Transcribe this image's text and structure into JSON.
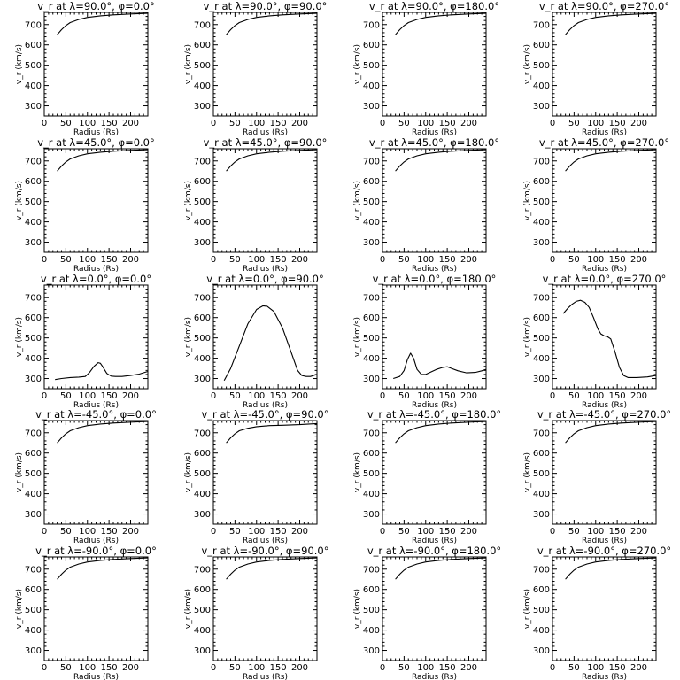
{
  "figure": {
    "background": "#ffffff",
    "line_color": "#000000"
  },
  "chart_data": [
    {
      "type": "line",
      "title": "v_r at λ=90.0°, φ=0.0°",
      "xlabel": "Radius (Rs)",
      "ylabel": "v_r (km/s)",
      "xlim": [
        0,
        240
      ],
      "ylim": [
        250,
        760
      ],
      "xticks": [
        0,
        50,
        100,
        150,
        200
      ],
      "yticks": [
        300,
        400,
        500,
        600,
        700
      ],
      "x": [
        30,
        40,
        50,
        60,
        80,
        100,
        130,
        160,
        200,
        240
      ],
      "y": [
        650,
        675,
        695,
        710,
        725,
        735,
        743,
        748,
        752,
        755
      ]
    },
    {
      "type": "line",
      "title": "v_r at λ=90.0°, φ=90.0°",
      "xlabel": "Radius (Rs)",
      "ylabel": "v_r (km/s)",
      "xlim": [
        0,
        240
      ],
      "ylim": [
        250,
        760
      ],
      "xticks": [
        0,
        50,
        100,
        150,
        200
      ],
      "yticks": [
        300,
        400,
        500,
        600,
        700
      ],
      "x": [
        30,
        40,
        50,
        60,
        80,
        100,
        130,
        160,
        200,
        240
      ],
      "y": [
        650,
        675,
        695,
        710,
        725,
        735,
        743,
        748,
        752,
        755
      ]
    },
    {
      "type": "line",
      "title": "v_r at λ=90.0°, φ=180.0°",
      "xlabel": "Radius (Rs)",
      "ylabel": "v_r (km/s)",
      "xlim": [
        0,
        240
      ],
      "ylim": [
        250,
        760
      ],
      "xticks": [
        0,
        50,
        100,
        150,
        200
      ],
      "yticks": [
        300,
        400,
        500,
        600,
        700
      ],
      "x": [
        30,
        40,
        50,
        60,
        80,
        100,
        130,
        160,
        200,
        240
      ],
      "y": [
        650,
        675,
        695,
        710,
        725,
        735,
        743,
        748,
        752,
        755
      ]
    },
    {
      "type": "line",
      "title": "v_r at λ=90.0°, φ=270.0°",
      "xlabel": "Radius (Rs)",
      "ylabel": "v_r (km/s)",
      "xlim": [
        0,
        240
      ],
      "ylim": [
        250,
        760
      ],
      "xticks": [
        0,
        50,
        100,
        150,
        200
      ],
      "yticks": [
        300,
        400,
        500,
        600,
        700
      ],
      "x": [
        30,
        40,
        50,
        60,
        80,
        100,
        130,
        160,
        200,
        240
      ],
      "y": [
        650,
        675,
        695,
        710,
        725,
        735,
        743,
        748,
        752,
        755
      ]
    },
    {
      "type": "line",
      "title": "v_r at λ=45.0°, φ=0.0°",
      "xlabel": "Radius (Rs)",
      "ylabel": "v_r (km/s)",
      "xlim": [
        0,
        240
      ],
      "ylim": [
        250,
        760
      ],
      "xticks": [
        0,
        50,
        100,
        150,
        200
      ],
      "yticks": [
        300,
        400,
        500,
        600,
        700
      ],
      "x": [
        30,
        40,
        50,
        60,
        80,
        100,
        130,
        160,
        200,
        240
      ],
      "y": [
        650,
        675,
        695,
        710,
        725,
        735,
        743,
        748,
        752,
        755
      ]
    },
    {
      "type": "line",
      "title": "v_r at λ=45.0°, φ=90.0°",
      "xlabel": "Radius (Rs)",
      "ylabel": "v_r (km/s)",
      "xlim": [
        0,
        240
      ],
      "ylim": [
        250,
        760
      ],
      "xticks": [
        0,
        50,
        100,
        150,
        200
      ],
      "yticks": [
        300,
        400,
        500,
        600,
        700
      ],
      "x": [
        30,
        40,
        50,
        60,
        80,
        100,
        130,
        160,
        200,
        240
      ],
      "y": [
        650,
        675,
        695,
        710,
        725,
        735,
        743,
        748,
        752,
        755
      ]
    },
    {
      "type": "line",
      "title": "v_r at λ=45.0°, φ=180.0°",
      "xlabel": "Radius (Rs)",
      "ylabel": "v_r (km/s)",
      "xlim": [
        0,
        240
      ],
      "ylim": [
        250,
        760
      ],
      "xticks": [
        0,
        50,
        100,
        150,
        200
      ],
      "yticks": [
        300,
        400,
        500,
        600,
        700
      ],
      "x": [
        30,
        40,
        50,
        60,
        80,
        100,
        130,
        160,
        200,
        240
      ],
      "y": [
        650,
        675,
        695,
        710,
        725,
        735,
        743,
        748,
        752,
        755
      ]
    },
    {
      "type": "line",
      "title": "v_r at λ=45.0°, φ=270.0°",
      "xlabel": "Radius (Rs)",
      "ylabel": "v_r (km/s)",
      "xlim": [
        0,
        240
      ],
      "ylim": [
        250,
        760
      ],
      "xticks": [
        0,
        50,
        100,
        150,
        200
      ],
      "yticks": [
        300,
        400,
        500,
        600,
        700
      ],
      "x": [
        30,
        40,
        50,
        60,
        80,
        100,
        130,
        160,
        200,
        240
      ],
      "y": [
        650,
        675,
        695,
        710,
        725,
        735,
        743,
        748,
        752,
        755
      ]
    },
    {
      "type": "line",
      "title": "v_r at λ=0.0°, φ=0.0°",
      "xlabel": "Radius (Rs)",
      "ylabel": "v_r (km/s)",
      "xlim": [
        0,
        240
      ],
      "ylim": [
        250,
        760
      ],
      "xticks": [
        0,
        50,
        100,
        150,
        200
      ],
      "yticks": [
        300,
        400,
        500,
        600,
        700
      ],
      "x": [
        25,
        40,
        60,
        80,
        95,
        105,
        115,
        125,
        130,
        135,
        145,
        155,
        165,
        180,
        200,
        220,
        240
      ],
      "y": [
        295,
        300,
        305,
        307,
        310,
        330,
        360,
        378,
        375,
        360,
        325,
        312,
        310,
        310,
        315,
        322,
        335
      ]
    },
    {
      "type": "line",
      "title": "v_r at λ=0.0°, φ=90.0°",
      "xlabel": "Radius (Rs)",
      "ylabel": "v_r (km/s)",
      "xlim": [
        0,
        240
      ],
      "ylim": [
        250,
        760
      ],
      "xticks": [
        0,
        50,
        100,
        150,
        200
      ],
      "yticks": [
        300,
        400,
        500,
        600,
        700
      ],
      "x": [
        25,
        40,
        60,
        80,
        100,
        115,
        125,
        140,
        160,
        180,
        195,
        205,
        215,
        225,
        240
      ],
      "y": [
        290,
        350,
        460,
        570,
        640,
        658,
        655,
        630,
        550,
        430,
        340,
        315,
        310,
        310,
        320
      ]
    },
    {
      "type": "line",
      "title": "v_r at λ=0.0°, φ=180.0°",
      "xlabel": "Radius (Rs)",
      "ylabel": "v_r (km/s)",
      "xlim": [
        0,
        240
      ],
      "ylim": [
        250,
        760
      ],
      "xticks": [
        0,
        50,
        100,
        150,
        200
      ],
      "yticks": [
        300,
        400,
        500,
        600,
        700
      ],
      "x": [
        25,
        40,
        50,
        58,
        65,
        72,
        80,
        90,
        100,
        110,
        125,
        140,
        150,
        160,
        175,
        195,
        215,
        230,
        240
      ],
      "y": [
        300,
        310,
        340,
        395,
        425,
        400,
        345,
        320,
        320,
        330,
        345,
        355,
        358,
        350,
        338,
        328,
        330,
        338,
        345
      ]
    },
    {
      "type": "line",
      "title": "v_r at λ=0.0°, φ=270.0°",
      "xlabel": "Radius (Rs)",
      "ylabel": "v_r (km/s)",
      "xlim": [
        0,
        240
      ],
      "ylim": [
        250,
        760
      ],
      "xticks": [
        0,
        50,
        100,
        150,
        200
      ],
      "yticks": [
        300,
        400,
        500,
        600,
        700
      ],
      "x": [
        25,
        35,
        45,
        55,
        65,
        75,
        85,
        95,
        105,
        112,
        120,
        128,
        135,
        145,
        155,
        165,
        175,
        195,
        220,
        240
      ],
      "y": [
        620,
        645,
        665,
        680,
        685,
        675,
        650,
        600,
        545,
        520,
        510,
        505,
        495,
        430,
        355,
        315,
        305,
        305,
        308,
        315
      ]
    },
    {
      "type": "line",
      "title": "v_r at λ=-45.0°, φ=0.0°",
      "xlabel": "Radius (Rs)",
      "ylabel": "v_r (km/s)",
      "xlim": [
        0,
        240
      ],
      "ylim": [
        250,
        760
      ],
      "xticks": [
        0,
        50,
        100,
        150,
        200
      ],
      "yticks": [
        300,
        400,
        500,
        600,
        700
      ],
      "x": [
        30,
        40,
        50,
        60,
        80,
        100,
        130,
        160,
        200,
        240
      ],
      "y": [
        650,
        675,
        695,
        710,
        725,
        735,
        743,
        748,
        752,
        755
      ]
    },
    {
      "type": "line",
      "title": "v_r at λ=-45.0°, φ=90.0°",
      "xlabel": "Radius (Rs)",
      "ylabel": "v_r (km/s)",
      "xlim": [
        0,
        240
      ],
      "ylim": [
        250,
        760
      ],
      "xticks": [
        0,
        50,
        100,
        150,
        200
      ],
      "yticks": [
        300,
        400,
        500,
        600,
        700
      ],
      "x": [
        30,
        40,
        50,
        60,
        80,
        100,
        130,
        160,
        200,
        240
      ],
      "y": [
        650,
        675,
        695,
        710,
        722,
        730,
        735,
        737,
        740,
        745
      ]
    },
    {
      "type": "line",
      "title": "v_r at λ=-45.0°, φ=180.0°",
      "xlabel": "Radius (Rs)",
      "ylabel": "v_r (km/s)",
      "xlim": [
        0,
        240
      ],
      "ylim": [
        250,
        760
      ],
      "xticks": [
        0,
        50,
        100,
        150,
        200
      ],
      "yticks": [
        300,
        400,
        500,
        600,
        700
      ],
      "x": [
        30,
        40,
        50,
        60,
        80,
        100,
        130,
        160,
        200,
        240
      ],
      "y": [
        650,
        675,
        695,
        710,
        725,
        735,
        743,
        748,
        752,
        755
      ]
    },
    {
      "type": "line",
      "title": "v_r at λ=-45.0°, φ=270.0°",
      "xlabel": "Radius (Rs)",
      "ylabel": "v_r (km/s)",
      "xlim": [
        0,
        240
      ],
      "ylim": [
        250,
        760
      ],
      "xticks": [
        0,
        50,
        100,
        150,
        200
      ],
      "yticks": [
        300,
        400,
        500,
        600,
        700
      ],
      "x": [
        30,
        40,
        50,
        60,
        80,
        100,
        130,
        160,
        200,
        240
      ],
      "y": [
        650,
        675,
        695,
        710,
        725,
        735,
        743,
        748,
        752,
        755
      ]
    },
    {
      "type": "line",
      "title": "v_r at λ=-90.0°, φ=0.0°",
      "xlabel": "Radius (Rs)",
      "ylabel": "v_r (km/s)",
      "xlim": [
        0,
        240
      ],
      "ylim": [
        250,
        760
      ],
      "xticks": [
        0,
        50,
        100,
        150,
        200
      ],
      "yticks": [
        300,
        400,
        500,
        600,
        700
      ],
      "x": [
        30,
        40,
        50,
        60,
        80,
        100,
        130,
        160,
        200,
        240
      ],
      "y": [
        650,
        675,
        695,
        710,
        725,
        735,
        743,
        748,
        752,
        755
      ]
    },
    {
      "type": "line",
      "title": "v_r at λ=-90.0°, φ=90.0°",
      "xlabel": "Radius (Rs)",
      "ylabel": "v_r (km/s)",
      "xlim": [
        0,
        240
      ],
      "ylim": [
        250,
        760
      ],
      "xticks": [
        0,
        50,
        100,
        150,
        200
      ],
      "yticks": [
        300,
        400,
        500,
        600,
        700
      ],
      "x": [
        30,
        40,
        50,
        60,
        80,
        100,
        130,
        160,
        200,
        240
      ],
      "y": [
        650,
        675,
        695,
        710,
        725,
        735,
        743,
        748,
        752,
        755
      ]
    },
    {
      "type": "line",
      "title": "v_r at λ=-90.0°, φ=180.0°",
      "xlabel": "Radius (Rs)",
      "ylabel": "v_r (km/s)",
      "xlim": [
        0,
        240
      ],
      "ylim": [
        250,
        760
      ],
      "xticks": [
        0,
        50,
        100,
        150,
        200
      ],
      "yticks": [
        300,
        400,
        500,
        600,
        700
      ],
      "x": [
        30,
        40,
        50,
        60,
        80,
        100,
        130,
        160,
        200,
        240
      ],
      "y": [
        650,
        675,
        695,
        710,
        725,
        735,
        743,
        748,
        752,
        755
      ]
    },
    {
      "type": "line",
      "title": "v_r at λ=-90.0°, φ=270.0°",
      "xlabel": "Radius (Rs)",
      "ylabel": "v_r (km/s)",
      "xlim": [
        0,
        240
      ],
      "ylim": [
        250,
        760
      ],
      "xticks": [
        0,
        50,
        100,
        150,
        200
      ],
      "yticks": [
        300,
        400,
        500,
        600,
        700
      ],
      "x": [
        30,
        40,
        50,
        60,
        80,
        100,
        130,
        160,
        200,
        240
      ],
      "y": [
        650,
        675,
        695,
        710,
        725,
        735,
        743,
        748,
        752,
        755
      ]
    }
  ]
}
